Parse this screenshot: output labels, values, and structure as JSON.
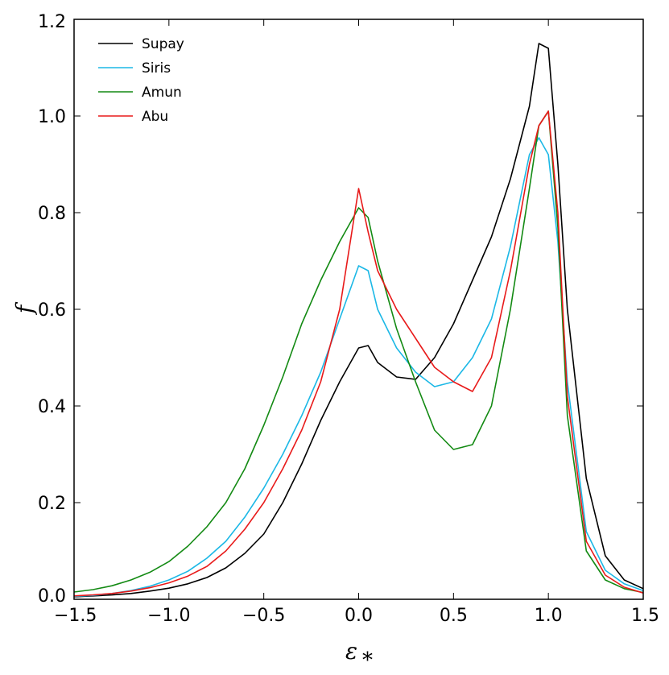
{
  "chart_data": {
    "type": "line",
    "title": "",
    "xlabel": "ε",
    "xlabel_subscript": "*",
    "ylabel": "f",
    "xlim": [
      -1.5,
      1.5
    ],
    "ylim": [
      0.0,
      1.2
    ],
    "xticks": [
      -1.5,
      -1.0,
      -0.5,
      0.0,
      0.5,
      1.0,
      1.5
    ],
    "yticks": [
      0.0,
      0.2,
      0.4,
      0.6,
      0.8,
      1.0,
      1.2
    ],
    "xtick_labels": [
      "−1.5",
      "−1.0",
      "−0.5",
      "0.0",
      "0.5",
      "1.0",
      "1.5"
    ],
    "ytick_labels": [
      "0.0",
      "0.2",
      "0.4",
      "0.6",
      "0.8",
      "1.0",
      "1.2"
    ],
    "grid": false,
    "legend_position": "top-left",
    "x": [
      -1.5,
      -1.4,
      -1.3,
      -1.2,
      -1.1,
      -1.0,
      -0.9,
      -0.8,
      -0.7,
      -0.6,
      -0.5,
      -0.4,
      -0.3,
      -0.2,
      -0.1,
      0.0,
      0.05,
      0.1,
      0.2,
      0.3,
      0.4,
      0.5,
      0.6,
      0.7,
      0.8,
      0.9,
      0.95,
      1.0,
      1.05,
      1.1,
      1.2,
      1.3,
      1.4,
      1.5
    ],
    "series": [
      {
        "name": "Supay",
        "color": "#000000",
        "values": [
          0.005,
          0.007,
          0.009,
          0.012,
          0.017,
          0.023,
          0.032,
          0.045,
          0.065,
          0.095,
          0.135,
          0.2,
          0.28,
          0.37,
          0.45,
          0.52,
          0.525,
          0.49,
          0.46,
          0.455,
          0.5,
          0.57,
          0.66,
          0.75,
          0.87,
          1.02,
          1.15,
          1.14,
          0.9,
          0.6,
          0.25,
          0.09,
          0.04,
          0.022
        ]
      },
      {
        "name": "Siris",
        "color": "#1cb8e6",
        "values": [
          0.006,
          0.008,
          0.012,
          0.018,
          0.027,
          0.04,
          0.058,
          0.085,
          0.12,
          0.17,
          0.23,
          0.3,
          0.38,
          0.47,
          0.58,
          0.69,
          0.68,
          0.6,
          0.52,
          0.47,
          0.44,
          0.45,
          0.5,
          0.58,
          0.73,
          0.92,
          0.955,
          0.92,
          0.74,
          0.45,
          0.14,
          0.06,
          0.032,
          0.018
        ]
      },
      {
        "name": "Amun",
        "color": "#138a13",
        "values": [
          0.015,
          0.02,
          0.028,
          0.04,
          0.056,
          0.078,
          0.11,
          0.15,
          0.2,
          0.27,
          0.36,
          0.46,
          0.57,
          0.66,
          0.74,
          0.81,
          0.79,
          0.7,
          0.56,
          0.45,
          0.35,
          0.31,
          0.32,
          0.4,
          0.6,
          0.85,
          0.98,
          1.01,
          0.77,
          0.38,
          0.1,
          0.04,
          0.022,
          0.014
        ]
      },
      {
        "name": "Abu",
        "color": "#e81a1a",
        "values": [
          0.007,
          0.009,
          0.012,
          0.017,
          0.024,
          0.034,
          0.048,
          0.068,
          0.1,
          0.145,
          0.2,
          0.27,
          0.35,
          0.45,
          0.6,
          0.85,
          0.76,
          0.68,
          0.6,
          0.54,
          0.48,
          0.45,
          0.43,
          0.5,
          0.68,
          0.9,
          0.98,
          1.01,
          0.8,
          0.42,
          0.12,
          0.05,
          0.025,
          0.013
        ]
      }
    ]
  }
}
